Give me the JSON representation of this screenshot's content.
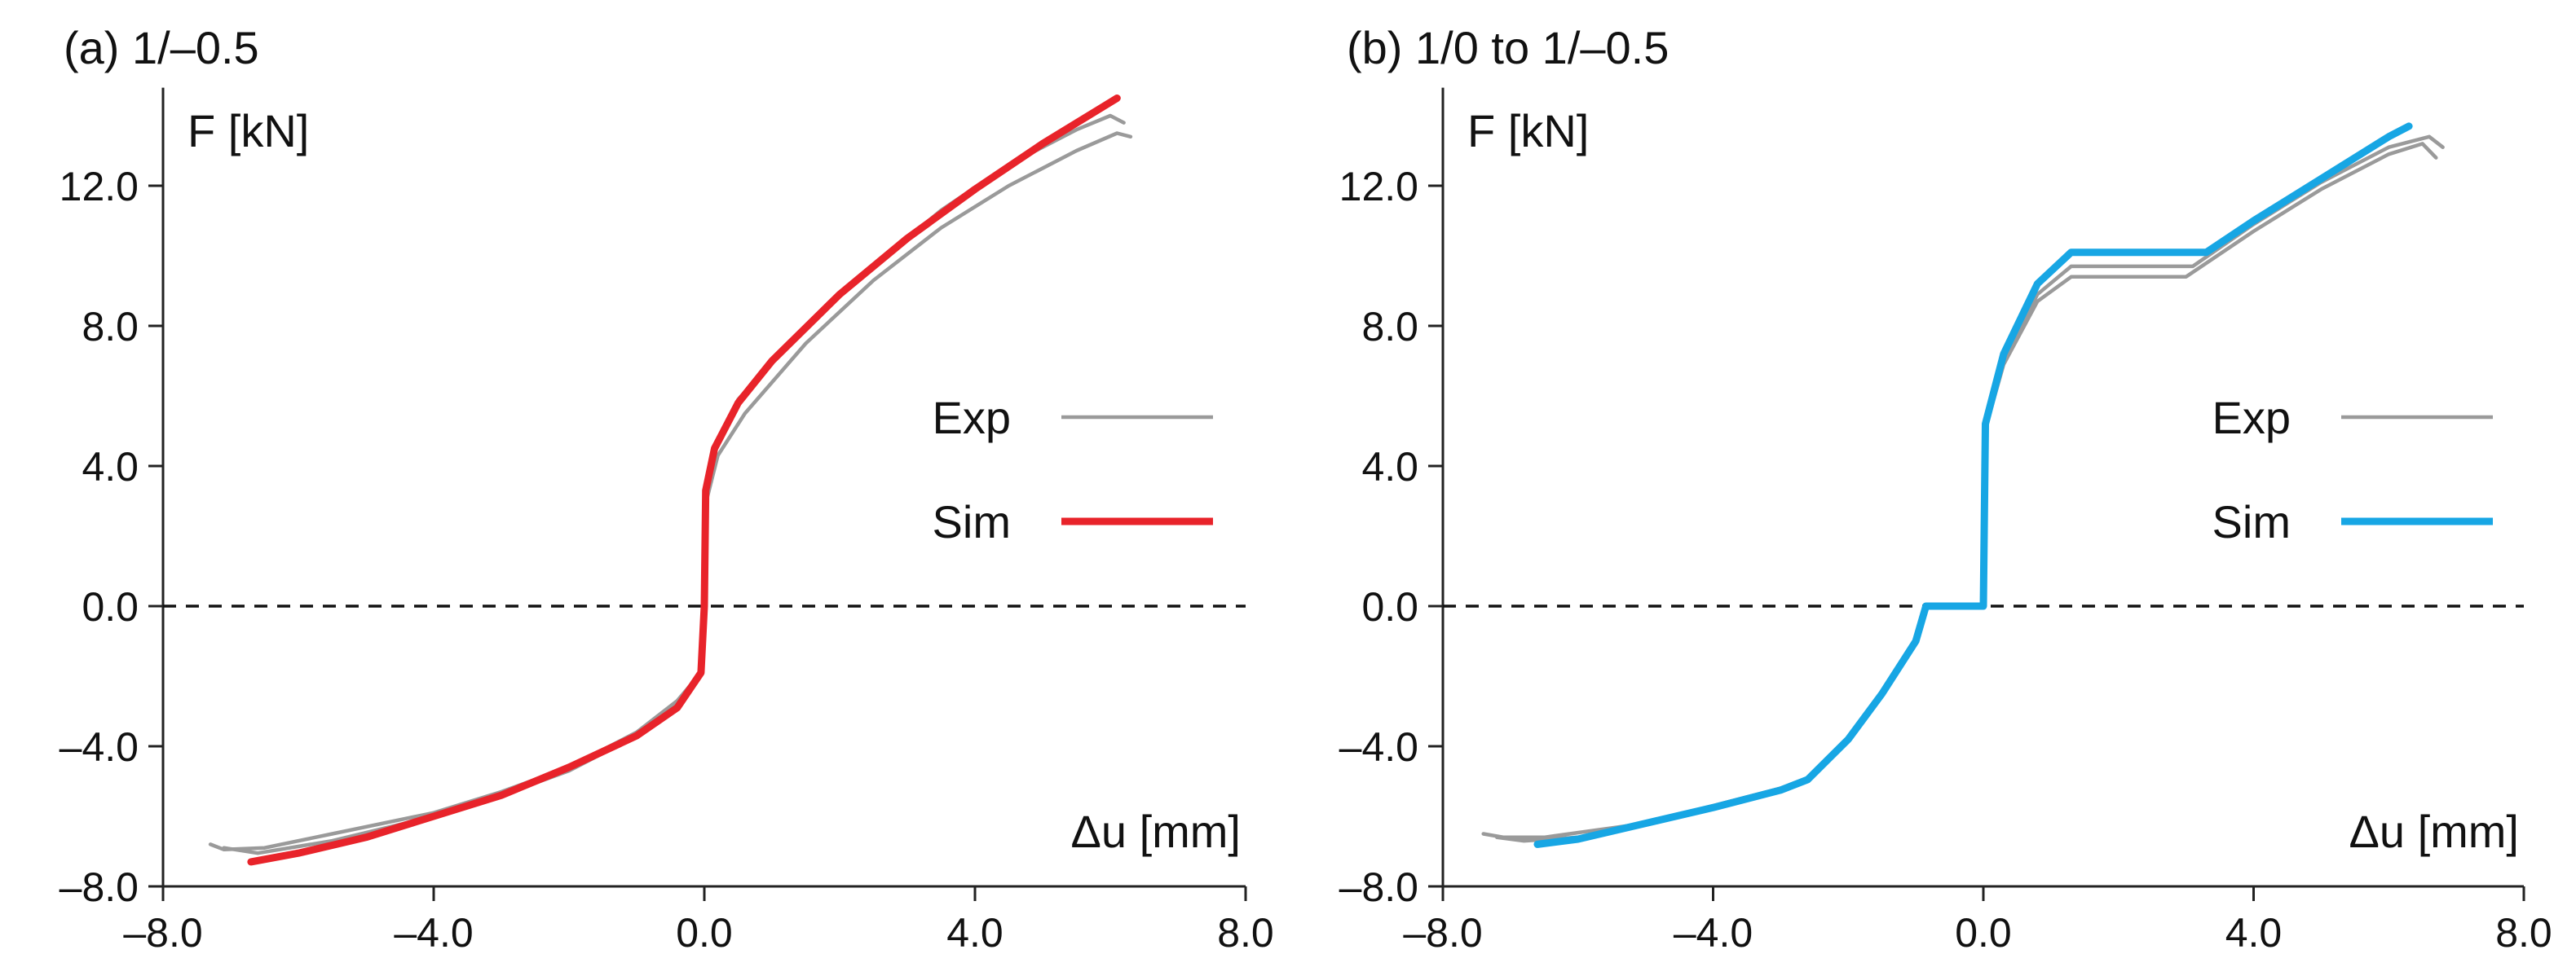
{
  "chart_data": [
    {
      "type": "line",
      "title": "(a) 1/–0.5",
      "xlabel": "Δu [mm]",
      "ylabel": "F [kN]",
      "xlim": [
        -8,
        8
      ],
      "ylim": [
        -8,
        14.8
      ],
      "xticks": [
        -8,
        -4,
        0,
        4,
        8
      ],
      "xtick_labels": [
        "–8.0",
        "–4.0",
        "0.0",
        "4.0",
        "8.0"
      ],
      "yticks": [
        -8,
        -4,
        0,
        4,
        8,
        12
      ],
      "ytick_labels": [
        "–8.0",
        "–4.0",
        "0.0",
        "4.0",
        "8.0",
        "12.0"
      ],
      "zero_line": true,
      "legend": [
        {
          "label": "Exp",
          "color": "#9a9a9a"
        },
        {
          "label": "Sim",
          "color": "#e8232a"
        }
      ],
      "series": [
        {
          "name": "Exp",
          "color": "#9a9a9a",
          "points": [
            [
              -7.3,
              -6.8
            ],
            [
              -7.1,
              -6.95
            ],
            [
              -6.5,
              -6.9
            ],
            [
              -5.5,
              -6.5
            ],
            [
              -4.0,
              -5.9
            ],
            [
              -3.0,
              -5.3
            ],
            [
              -2.0,
              -4.6
            ],
            [
              -1.0,
              -3.6
            ],
            [
              -0.4,
              -2.7
            ],
            [
              -0.05,
              -1.9
            ],
            [
              0.0,
              0.0
            ],
            [
              0.03,
              3.0
            ],
            [
              0.2,
              4.3
            ],
            [
              0.6,
              5.5
            ],
            [
              1.5,
              7.5
            ],
            [
              2.5,
              9.3
            ],
            [
              3.5,
              10.8
            ],
            [
              4.5,
              12.0
            ],
            [
              5.5,
              13.0
            ],
            [
              6.1,
              13.5
            ],
            [
              6.3,
              13.4
            ]
          ]
        },
        {
          "name": "Exp",
          "color": "#9a9a9a",
          "points": [
            [
              -7.1,
              -6.9
            ],
            [
              -6.6,
              -7.05
            ],
            [
              -5.5,
              -6.7
            ],
            [
              -4.0,
              -6.0
            ],
            [
              -3.0,
              -5.4
            ],
            [
              -2.0,
              -4.7
            ],
            [
              -1.0,
              -3.7
            ],
            [
              -0.4,
              -2.8
            ],
            [
              -0.05,
              -1.9
            ],
            [
              0.0,
              0.0
            ],
            [
              0.02,
              3.2
            ],
            [
              0.15,
              4.5
            ],
            [
              0.5,
              5.9
            ],
            [
              1.5,
              8.0
            ],
            [
              2.5,
              9.7
            ],
            [
              3.5,
              11.3
            ],
            [
              4.5,
              12.6
            ],
            [
              5.5,
              13.6
            ],
            [
              6.0,
              14.0
            ],
            [
              6.2,
              13.8
            ]
          ]
        },
        {
          "name": "Sim",
          "color": "#e8232a",
          "points": [
            [
              -6.7,
              -7.3
            ],
            [
              -6.0,
              -7.05
            ],
            [
              -5.0,
              -6.6
            ],
            [
              -4.0,
              -6.0
            ],
            [
              -3.0,
              -5.4
            ],
            [
              -2.0,
              -4.6
            ],
            [
              -1.0,
              -3.7
            ],
            [
              -0.4,
              -2.9
            ],
            [
              -0.05,
              -1.9
            ],
            [
              0.0,
              0.0
            ],
            [
              0.02,
              3.3
            ],
            [
              0.15,
              4.5
            ],
            [
              0.5,
              5.8
            ],
            [
              1.0,
              7.0
            ],
            [
              2.0,
              8.9
            ],
            [
              3.0,
              10.5
            ],
            [
              4.0,
              11.9
            ],
            [
              5.0,
              13.2
            ],
            [
              6.1,
              14.5
            ]
          ]
        }
      ]
    },
    {
      "type": "line",
      "title": "(b) 1/0 to 1/–0.5",
      "xlabel": "Δu [mm]",
      "ylabel": "F [kN]",
      "xlim": [
        -8,
        8
      ],
      "ylim": [
        -8,
        14.8
      ],
      "xticks": [
        -8,
        -4,
        0,
        4,
        8
      ],
      "xtick_labels": [
        "–8.0",
        "–4.0",
        "0.0",
        "4.0",
        "8.0"
      ],
      "yticks": [
        -8,
        -4,
        0,
        4,
        8,
        12
      ],
      "ytick_labels": [
        "–8.0",
        "–4.0",
        "0.0",
        "4.0",
        "8.0",
        "12.0"
      ],
      "zero_line": true,
      "legend": [
        {
          "label": "Exp",
          "color": "#9a9a9a"
        },
        {
          "label": "Sim",
          "color": "#17a6e4"
        }
      ],
      "series": [
        {
          "name": "Exp",
          "color": "#9a9a9a",
          "points": [
            [
              -7.4,
              -6.5
            ],
            [
              -7.1,
              -6.6
            ],
            [
              -6.5,
              -6.6
            ],
            [
              -5.0,
              -6.2
            ],
            [
              -4.0,
              -5.7
            ],
            [
              -3.0,
              -5.2
            ],
            [
              -2.6,
              -4.9
            ],
            [
              -2.0,
              -3.8
            ],
            [
              -1.5,
              -2.5
            ],
            [
              -1.0,
              -1.0
            ],
            [
              -0.85,
              0.0
            ],
            [
              0.0,
              0.0
            ],
            [
              0.02,
              5.0
            ],
            [
              0.3,
              6.9
            ],
            [
              0.8,
              8.7
            ],
            [
              1.3,
              9.4
            ],
            [
              3.0,
              9.4
            ],
            [
              4.0,
              10.7
            ],
            [
              5.0,
              11.9
            ],
            [
              6.0,
              12.9
            ],
            [
              6.5,
              13.2
            ],
            [
              6.7,
              12.8
            ]
          ]
        },
        {
          "name": "Exp",
          "color": "#9a9a9a",
          "points": [
            [
              -7.2,
              -6.6
            ],
            [
              -6.8,
              -6.7
            ],
            [
              -6.0,
              -6.6
            ],
            [
              -5.0,
              -6.2
            ],
            [
              -4.0,
              -5.7
            ],
            [
              -3.0,
              -5.2
            ],
            [
              -2.6,
              -4.9
            ],
            [
              -2.0,
              -3.8
            ],
            [
              -1.5,
              -2.5
            ],
            [
              -1.0,
              -1.0
            ],
            [
              -0.85,
              0.0
            ],
            [
              0.0,
              0.0
            ],
            [
              0.02,
              5.1
            ],
            [
              0.3,
              7.0
            ],
            [
              0.8,
              8.9
            ],
            [
              1.3,
              9.7
            ],
            [
              3.1,
              9.7
            ],
            [
              4.0,
              10.9
            ],
            [
              5.0,
              12.1
            ],
            [
              6.0,
              13.1
            ],
            [
              6.6,
              13.4
            ],
            [
              6.8,
              13.1
            ]
          ]
        },
        {
          "name": "Sim",
          "color": "#17a6e4",
          "points": [
            [
              -6.6,
              -6.8
            ],
            [
              -6.0,
              -6.65
            ],
            [
              -5.0,
              -6.2
            ],
            [
              -4.0,
              -5.75
            ],
            [
              -3.0,
              -5.25
            ],
            [
              -2.6,
              -4.95
            ],
            [
              -2.0,
              -3.8
            ],
            [
              -1.5,
              -2.5
            ],
            [
              -1.0,
              -1.0
            ],
            [
              -0.85,
              0.0
            ],
            [
              0.0,
              0.0
            ],
            [
              0.03,
              5.2
            ],
            [
              0.3,
              7.2
            ],
            [
              0.8,
              9.2
            ],
            [
              1.3,
              10.1
            ],
            [
              3.3,
              10.1
            ],
            [
              4.0,
              11.0
            ],
            [
              5.0,
              12.2
            ],
            [
              6.0,
              13.4
            ],
            [
              6.3,
              13.7
            ]
          ]
        }
      ]
    }
  ]
}
